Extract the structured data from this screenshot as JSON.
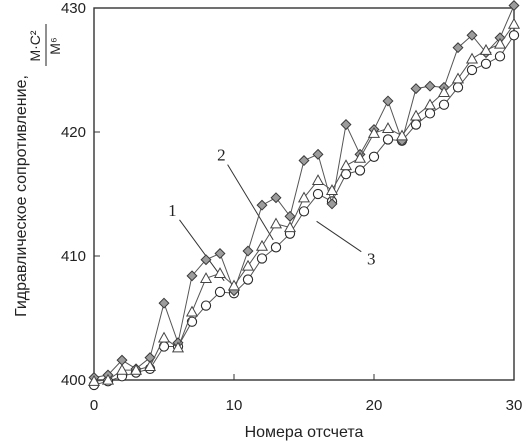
{
  "chart_data": {
    "type": "line",
    "xlabel": "Номера отсчета",
    "ylabel": "Гидравлическое сопротивление,",
    "ylabel_unit_num": "М·С²",
    "ylabel_unit_den": "М⁶",
    "xlim": [
      0,
      30
    ],
    "ylim": [
      400,
      430
    ],
    "xticks": [
      0,
      10,
      20,
      30
    ],
    "yticks": [
      400,
      410,
      420,
      430
    ],
    "grid": false,
    "x": [
      0,
      1,
      2,
      3,
      4,
      5,
      6,
      7,
      8,
      9,
      10,
      11,
      12,
      13,
      14,
      15,
      16,
      17,
      18,
      19,
      20,
      21,
      22,
      23,
      24,
      25,
      26,
      27,
      28,
      29,
      30
    ],
    "series": [
      {
        "name": "1",
        "marker": "circle",
        "values": [
          399.6,
          399.9,
          400.3,
          400.6,
          400.9,
          402.7,
          402.7,
          404.7,
          406.0,
          407.1,
          407.0,
          408.1,
          409.8,
          410.7,
          411.8,
          413.6,
          415.0,
          414.4,
          416.6,
          416.9,
          418.0,
          419.4,
          419.3,
          420.6,
          421.5,
          422.2,
          423.6,
          425.0,
          425.5,
          426.1,
          427.8
        ]
      },
      {
        "name": "2",
        "marker": "diamond",
        "values": [
          400.2,
          400.4,
          401.6,
          400.9,
          401.8,
          406.2,
          403.0,
          408.4,
          409.7,
          410.2,
          407.2,
          410.4,
          414.1,
          414.7,
          413.2,
          417.7,
          418.2,
          414.2,
          420.6,
          418.2,
          420.2,
          422.5,
          419.3,
          423.5,
          423.7,
          423.6,
          426.8,
          427.8,
          426.4,
          427.6,
          430.2
        ]
      },
      {
        "name": "3",
        "marker": "triangle",
        "values": [
          399.9,
          400.0,
          400.8,
          400.8,
          401.1,
          403.4,
          402.6,
          405.5,
          408.2,
          408.6,
          407.6,
          409.2,
          410.8,
          412.6,
          412.3,
          414.7,
          416.1,
          415.3,
          417.3,
          417.9,
          419.9,
          420.3,
          419.7,
          421.3,
          422.2,
          423.2,
          424.3,
          425.9,
          426.6,
          427.1,
          428.7
        ]
      }
    ],
    "annotations": [
      {
        "label": "1",
        "text_x": 5.6,
        "text_y": 413.7,
        "point_x": 9.3,
        "point_y": 408.0
      },
      {
        "label": "2",
        "text_x": 9.1,
        "text_y": 418.2,
        "point_x": 12.8,
        "point_y": 411.3
      },
      {
        "label": "3",
        "text_x": 19.8,
        "text_y": 409.8,
        "point_x": 15.9,
        "point_y": 412.8
      }
    ]
  }
}
